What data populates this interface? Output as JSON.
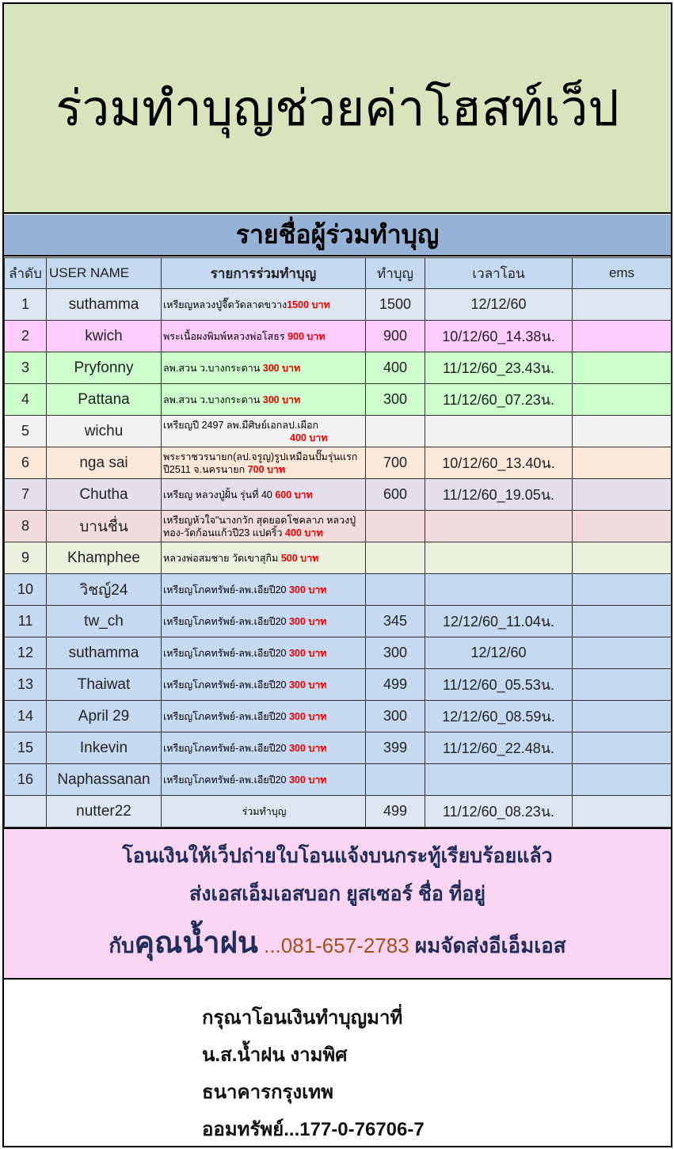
{
  "title": "ร่วมทำบุญช่วยค่าโฮสท์เว็ป",
  "subtitle": "รายชื่อผู้ร่วมทำบุญ",
  "columns": [
    "ลำดับ",
    "USER NAME",
    "รายการร่วมทำบุญ",
    "ทำบุญ",
    "เวลาโอน",
    "ems"
  ],
  "rows": [
    {
      "no": "1",
      "user": "suthamma",
      "item": "เหรียญหลวงปู่จื๊ดวัดลาดขวาง",
      "amount": "1500 บาท",
      "paid": "1500",
      "time": "12/12/60",
      "bg": "#dce6f1"
    },
    {
      "no": "2",
      "user": "kwich",
      "item": " พระเนื้อผงพิมพ์หลวงพ่อโสธร   ",
      "amount": "900 บาท",
      "paid": "900",
      "time": "10/12/60_14.38น.",
      "bg": "#ffccff"
    },
    {
      "no": "3",
      "user": "Pryfonny",
      "item": "ลพ.สวน   ว.บางกระดาน            ",
      "amount": "300 บาท",
      "paid": "400",
      "time": "11/12/60_23.43น.",
      "bg": "#ccffcc"
    },
    {
      "no": "4",
      "user": "Pattana",
      "item": "ลพ.สวน   ว.บางกระดาน            ",
      "amount": "300 บาท",
      "paid": "300",
      "time": "11/12/60_07.23น.",
      "bg": "#ccffcc"
    },
    {
      "no": "5",
      "user": "wichu",
      "item": "เหรียญปี   2497 ลพ.มีศิษย์เอกลป.เผือก",
      "amount": "400 บาท",
      "paid": "",
      "time": "",
      "bg": "#f2f2f2",
      "amt_newline": true
    },
    {
      "no": "6",
      "user": "nga sai",
      "item": "พระราชวรนายก(ลป.จรูญ)รูปเหมือนปั๊มรุ่นแรก   ปี2511 จ.นครนายก          ",
      "amount": "700 บาท",
      "paid": "700",
      "time": "10/12/60_13.40น.",
      "bg": "#fde9d9"
    },
    {
      "no": "7",
      "user": "Chutha",
      "item": "เหรียญ   หลวงปู่ฝั้น  รุ่นที่  40  ",
      "amount": "600 บาท",
      "paid": "600",
      "time": "11/12/60_19.05น.",
      "bg": "#e4dfec"
    },
    {
      "no": "8",
      "user": "บานชื่น",
      "item": "เหรียญหัวใจ\"นางกวัก   สุดยอดโชคลาภ หลวงปู่ทอง-วัดก้อนแก้วปี23 แปดริ้ว   ",
      "amount": "400 บาท",
      "paid": "",
      "time": "",
      "bg": "#f2dcdb"
    },
    {
      "no": "9",
      "user": "Khamphee",
      "item": "หลวงพ่อสมชาย   วัดเขาสุกิม  ",
      "amount": "500 บาท",
      "paid": "",
      "time": "",
      "bg": "#ebf1de"
    },
    {
      "no": "10",
      "user": "วิชญ์24",
      "item": "เหรียญโภคทรัพย์-ลพ.เอียปี20 ",
      "amount": "300 บาท",
      "paid": "",
      "time": "",
      "bg": "#c5d9f1"
    },
    {
      "no": "11",
      "user": "tw_ch",
      "item": "เหรียญโภคทรัพย์-ลพ.เอียปี20 ",
      "amount": "300 บาท",
      "paid": "345",
      "time": "12/12/60_11.04น.",
      "bg": "#c5d9f1"
    },
    {
      "no": "12",
      "user": "suthamma",
      "item": "เหรียญโภคทรัพย์-ลพ.เอียปี20 ",
      "amount": "300 บาท",
      "paid": "300",
      "time": "12/12/60",
      "bg": "#c5d9f1"
    },
    {
      "no": "13",
      "user": "Thaiwat",
      "item": "เหรียญโภคทรัพย์-ลพ.เอียปี20 ",
      "amount": "300 บาท",
      "paid": "499",
      "time": "11/12/60_05.53น.",
      "bg": "#c5d9f1"
    },
    {
      "no": "14",
      "user": "April 29",
      "item": "เหรียญโภคทรัพย์-ลพ.เอียปี20 ",
      "amount": "300 บาท",
      "paid": "300",
      "time": "12/12/60_08.59น.",
      "bg": "#c5d9f1"
    },
    {
      "no": "15",
      "user": "Inkevin",
      "item": "เหรียญโภคทรัพย์-ลพ.เอียปี20 ",
      "amount": "300 บาท",
      "paid": "399",
      "time": "11/12/60_22.48น.",
      "bg": "#c5d9f1"
    },
    {
      "no": "16",
      "user": "Naphassanan",
      "item": "เหรียญโภคทรัพย์-ลพ.เอียปี20 ",
      "amount": "300 บาท",
      "paid": "",
      "time": "",
      "bg": "#c5d9f1"
    },
    {
      "no": "",
      "user": "nutter22",
      "item": "ร่วมทำบุญ",
      "amount": "",
      "paid": "499",
      "time": "11/12/60_08.23น.",
      "bg": "#dce6f1",
      "center": true
    }
  ],
  "notice": {
    "line1": "โอนเงินให้เว็ปถ่ายใบโอนแจ้งบนกระทู้เรียบร้อยแล้ว",
    "line2": "ส่งเอสเอ็มเอสบอก   ยูสเซอร์ ชื่อ ที่อยู่",
    "line3_prefix": "กับ",
    "line3_name": "คุณน้ำฝน",
    "line3_phone": " ...081-657-2783",
    "line3_suffix": " ผมจัดส่งอีเอ็มเอส"
  },
  "bank": {
    "line1": "กรุณาโอนเงินทำบุญมาที่",
    "line2": "น.ส.น้ำฝน งามพิศ",
    "line3": "ธนาคารกรุงเทพ",
    "line4": "ออมทรัพย์...177-0-76706-7"
  },
  "colors": {
    "title_bg": "#d8e4bc",
    "subtitle_bg": "#95b3d7",
    "header_bg": "#c5d9f1",
    "notice_bg": "#f9d5f1",
    "amount": "#ee0000",
    "phone": "#a0521a"
  }
}
